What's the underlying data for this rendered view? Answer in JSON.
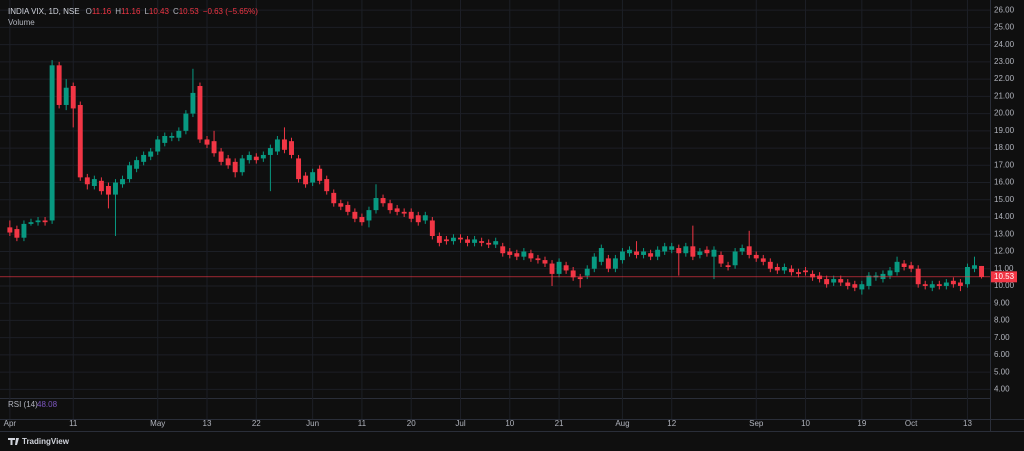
{
  "header": {
    "symbol": "INDIA VIX, 1D, NSE",
    "ohlc": [
      {
        "label": "O",
        "value": "11.16"
      },
      {
        "label": "H",
        "value": "11.16"
      },
      {
        "label": "L",
        "value": "10.43"
      },
      {
        "label": "C",
        "value": "10.53"
      }
    ],
    "change": "−0.63 (−5.65%)",
    "volume": "Volume"
  },
  "rsi": {
    "label": "RSI (14)",
    "value": "48.08"
  },
  "footer": {
    "brand": "TradingView"
  },
  "chart_data": {
    "type": "candlestick",
    "up_color": "#089981",
    "down_color": "#f23645",
    "grid": true,
    "last_price": 10.53,
    "xlim": [
      -1.4,
      139.2
    ],
    "ylim": [
      3.5,
      26.3
    ],
    "xticks": [
      {
        "value": 0,
        "label": "Apr"
      },
      {
        "value": 9,
        "label": "11"
      },
      {
        "value": 21,
        "label": "May"
      },
      {
        "value": 28,
        "label": "13"
      },
      {
        "value": 35,
        "label": "22"
      },
      {
        "value": 43,
        "label": "Jun"
      },
      {
        "value": 50,
        "label": "11"
      },
      {
        "value": 57,
        "label": "20"
      },
      {
        "value": 64,
        "label": "Jul"
      },
      {
        "value": 71,
        "label": "10"
      },
      {
        "value": 78,
        "label": "21"
      },
      {
        "value": 87,
        "label": "Aug"
      },
      {
        "value": 94,
        "label": "12"
      },
      {
        "value": 106,
        "label": "Sep"
      },
      {
        "value": 113,
        "label": "10"
      },
      {
        "value": 121,
        "label": "19"
      },
      {
        "value": 128,
        "label": "Oct"
      },
      {
        "value": 136,
        "label": "13"
      }
    ],
    "yticks": [
      {
        "value": 4,
        "label": "4.00"
      },
      {
        "value": 5,
        "label": "5.00"
      },
      {
        "value": 6,
        "label": "6.00"
      },
      {
        "value": 7,
        "label": "7.00"
      },
      {
        "value": 8,
        "label": "8.00"
      },
      {
        "value": 9,
        "label": "9.00"
      },
      {
        "value": 10,
        "label": "10.00"
      },
      {
        "value": 11,
        "label": "11.00"
      },
      {
        "value": 12,
        "label": "12.00"
      },
      {
        "value": 13,
        "label": "13.00"
      },
      {
        "value": 14,
        "label": "14.00"
      },
      {
        "value": 15,
        "label": "15.00"
      },
      {
        "value": 16,
        "label": "16.00"
      },
      {
        "value": 17,
        "label": "17.00"
      },
      {
        "value": 18,
        "label": "18.00"
      },
      {
        "value": 19,
        "label": "19.00"
      },
      {
        "value": 20,
        "label": "20.00"
      },
      {
        "value": 21,
        "label": "21.00"
      },
      {
        "value": 22,
        "label": "22.00"
      },
      {
        "value": 23,
        "label": "23.00"
      },
      {
        "value": 24,
        "label": "24.00"
      },
      {
        "value": 25,
        "label": "25.00"
      },
      {
        "value": 26,
        "label": "26.00"
      }
    ],
    "open": [
      13.4,
      13.3,
      12.8,
      13.6,
      13.7,
      13.8,
      13.8,
      22.8,
      20.5,
      21.6,
      20.5,
      16.3,
      15.8,
      16.1,
      15.8,
      15.3,
      15.9,
      16.2,
      16.8,
      17.2,
      17.5,
      17.8,
      18.3,
      18.6,
      18.6,
      19.0,
      20.0,
      21.6,
      18.5,
      18.4,
      17.8,
      17.4,
      17.2,
      16.6,
      17.3,
      17.5,
      17.4,
      17.6,
      17.8,
      18.5,
      18.4,
      17.4,
      16.4,
      16.0,
      16.8,
      16.2,
      15.4,
      14.8,
      14.7,
      14.3,
      14.0,
      13.8,
      14.4,
      15.1,
      14.8,
      14.5,
      14.3,
      14.3,
      14.1,
      13.8,
      13.8,
      12.9,
      12.7,
      12.6,
      12.8,
      12.7,
      12.5,
      12.6,
      12.5,
      12.4,
      12.3,
      12.0,
      11.9,
      11.7,
      11.9,
      11.6,
      11.5,
      11.3,
      10.7,
      11.2,
      10.9,
      10.5,
      10.6,
      11.0,
      11.4,
      11.6,
      11.0,
      11.5,
      11.9,
      12.0,
      11.8,
      11.9,
      11.7,
      12.0,
      12.1,
      12.2,
      11.9,
      12.3,
      11.8,
      12.1,
      11.7,
      11.8,
      11.2,
      11.2,
      12.0,
      12.3,
      11.8,
      11.6,
      11.4,
      11.1,
      10.9,
      11.0,
      10.8,
      10.9,
      10.7,
      10.6,
      10.4,
      10.2,
      10.4,
      10.2,
      10.1,
      9.8,
      10.0,
      10.5,
      10.4,
      10.6,
      10.8,
      11.3,
      11.2,
      11.0,
      10.1,
      9.9,
      10.1,
      10.0,
      10.3,
      10.2,
      10.1,
      11.0,
      11.16
    ],
    "high": [
      13.8,
      13.5,
      13.8,
      13.9,
      14.0,
      14.0,
      23.1,
      23.0,
      22.0,
      21.8,
      20.7,
      16.5,
      16.4,
      16.3,
      16.0,
      16.2,
      16.4,
      17.2,
      17.5,
      17.8,
      18.0,
      18.7,
      18.9,
      18.9,
      19.2,
      20.2,
      22.6,
      21.8,
      18.7,
      19.0,
      18.0,
      17.6,
      17.4,
      17.6,
      17.8,
      17.7,
      17.8,
      18.2,
      18.7,
      19.2,
      18.6,
      17.6,
      16.6,
      16.8,
      17.0,
      16.4,
      15.6,
      15.0,
      14.9,
      14.5,
      14.2,
      14.6,
      15.9,
      15.3,
      15.0,
      14.7,
      14.5,
      14.5,
      14.3,
      14.3,
      14.0,
      13.1,
      12.9,
      13.0,
      13.0,
      12.9,
      12.9,
      12.8,
      12.7,
      12.8,
      12.5,
      12.2,
      12.1,
      12.2,
      12.1,
      11.8,
      11.7,
      11.5,
      11.6,
      11.4,
      11.1,
      10.7,
      11.2,
      11.9,
      12.4,
      11.8,
      11.8,
      12.2,
      12.3,
      12.6,
      12.2,
      12.1,
      12.3,
      12.5,
      12.5,
      12.4,
      12.5,
      13.5,
      12.2,
      12.3,
      12.3,
      12.0,
      11.4,
      12.2,
      12.4,
      13.2,
      12.0,
      11.8,
      11.6,
      11.3,
      11.3,
      11.2,
      11.0,
      11.1,
      10.9,
      10.8,
      10.6,
      10.6,
      10.6,
      10.4,
      10.3,
      10.3,
      10.8,
      10.8,
      10.9,
      11.1,
      11.7,
      11.5,
      11.4,
      11.2,
      10.3,
      10.3,
      10.3,
      10.4,
      10.5,
      10.4,
      11.3,
      11.7,
      11.16
    ],
    "low": [
      12.9,
      12.6,
      12.6,
      13.5,
      13.5,
      13.5,
      13.6,
      20.3,
      20.2,
      19.2,
      16.1,
      15.6,
      15.6,
      15.3,
      14.5,
      12.9,
      15.7,
      16.0,
      16.6,
      17.0,
      17.3,
      17.6,
      18.1,
      18.4,
      18.4,
      18.8,
      19.8,
      18.3,
      18.0,
      17.5,
      17.0,
      16.8,
      16.3,
      16.4,
      17.1,
      17.1,
      17.2,
      15.5,
      17.6,
      17.7,
      17.4,
      16.0,
      15.7,
      15.8,
      15.9,
      15.3,
      14.6,
      14.4,
      14.1,
      13.7,
      13.5,
      13.4,
      14.2,
      14.6,
      14.2,
      14.1,
      14.0,
      13.7,
      13.5,
      13.6,
      12.7,
      12.3,
      12.4,
      12.4,
      12.5,
      12.3,
      12.3,
      12.3,
      12.2,
      12.2,
      11.7,
      11.6,
      11.5,
      11.5,
      11.4,
      11.3,
      11.1,
      10.0,
      10.5,
      10.7,
      10.3,
      9.9,
      10.4,
      10.8,
      11.2,
      10.8,
      10.8,
      11.3,
      11.7,
      11.6,
      11.6,
      11.5,
      11.5,
      11.8,
      11.9,
      10.6,
      11.7,
      11.5,
      11.6,
      11.7,
      10.4,
      11.1,
      10.9,
      11.0,
      11.8,
      11.6,
      11.4,
      11.2,
      10.8,
      10.7,
      10.7,
      10.6,
      10.5,
      10.6,
      10.3,
      10.2,
      9.9,
      10.0,
      10.0,
      9.8,
      9.7,
      9.5,
      9.8,
      10.3,
      10.2,
      10.4,
      10.6,
      10.9,
      10.8,
      9.9,
      9.8,
      9.7,
      9.8,
      9.8,
      9.9,
      9.7,
      9.9,
      10.8,
      10.43
    ],
    "close": [
      13.1,
      12.8,
      13.6,
      13.7,
      13.8,
      13.7,
      22.8,
      20.5,
      21.5,
      20.3,
      16.3,
      15.9,
      16.2,
      15.5,
      15.3,
      16.0,
      16.2,
      17.0,
      17.3,
      17.6,
      17.8,
      18.5,
      18.7,
      18.7,
      19.0,
      20.0,
      21.2,
      18.5,
      18.2,
      17.7,
      17.2,
      17.0,
      16.6,
      17.4,
      17.6,
      17.3,
      17.6,
      18.0,
      18.5,
      17.9,
      17.6,
      16.2,
      15.9,
      16.6,
      16.1,
      15.5,
      14.8,
      14.6,
      14.3,
      13.9,
      13.7,
      14.4,
      15.1,
      14.8,
      14.4,
      14.3,
      14.2,
      13.9,
      13.7,
      14.1,
      12.9,
      12.5,
      12.6,
      12.8,
      12.7,
      12.5,
      12.7,
      12.5,
      12.4,
      12.6,
      11.9,
      11.8,
      11.7,
      12.0,
      11.6,
      11.5,
      11.3,
      10.7,
      11.4,
      10.9,
      10.5,
      10.4,
      11.0,
      11.7,
      12.2,
      11.0,
      11.6,
      12.0,
      12.1,
      11.8,
      12.0,
      11.7,
      12.1,
      12.3,
      12.3,
      11.9,
      12.3,
      11.7,
      12.0,
      11.9,
      12.1,
      11.3,
      11.1,
      12.0,
      12.2,
      11.8,
      11.6,
      11.4,
      11.0,
      10.9,
      11.1,
      10.8,
      10.7,
      10.8,
      10.5,
      10.4,
      10.1,
      10.4,
      10.2,
      10.0,
      9.9,
      10.1,
      10.6,
      10.6,
      10.7,
      10.9,
      11.4,
      11.1,
      11.0,
      10.1,
      10.0,
      10.1,
      10.0,
      10.2,
      10.1,
      10.0,
      11.1,
      11.2,
      10.53
    ]
  }
}
